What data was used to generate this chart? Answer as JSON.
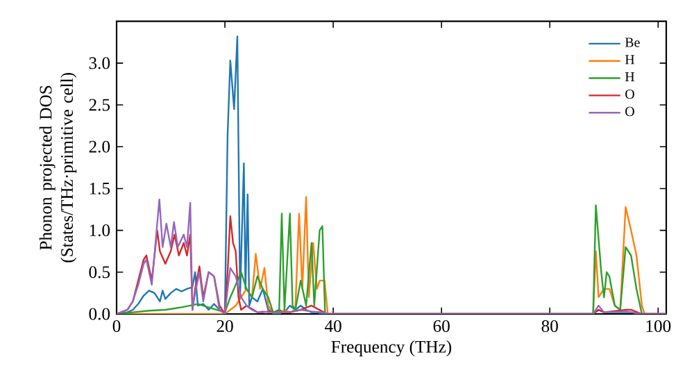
{
  "chart_data": {
    "type": "line",
    "xlabel": "Frequency (THz)",
    "ylabel": "Phonon projected DOS (States/THz·primitive cell)",
    "xlim": [
      0,
      101.5
    ],
    "ylim": [
      0,
      3.5
    ],
    "xticks": [
      0,
      20,
      40,
      60,
      80,
      100
    ],
    "yticks": [
      {
        "value": 0,
        "label": "0.0"
      },
      0.5,
      {
        "value": 1,
        "label": "1.0"
      },
      1.5,
      {
        "value": 2,
        "label": "2.0"
      },
      2.5,
      {
        "value": 3,
        "label": "3.0"
      }
    ],
    "legend": "top right",
    "series": [
      {
        "name": "Be",
        "color": "#1f77b4",
        "x": [
          0,
          2,
          3,
          4,
          5,
          6,
          7,
          8,
          8.5,
          9,
          10,
          11,
          12,
          13,
          14,
          14.5,
          15,
          16,
          17,
          18,
          19,
          20,
          20.5,
          21,
          21.7,
          22.3,
          22.8,
          23.5,
          23.8,
          24.2,
          24.5,
          25,
          26,
          27,
          28,
          29,
          30,
          31,
          32,
          33,
          34,
          35,
          36,
          37,
          38,
          39,
          88,
          89,
          90,
          95,
          97,
          101.5
        ],
        "values": [
          0,
          0.02,
          0.05,
          0.12,
          0.22,
          0.28,
          0.25,
          0.15,
          0.28,
          0.18,
          0.25,
          0.3,
          0.27,
          0.3,
          0.32,
          0.5,
          0.1,
          0.12,
          0.05,
          0.12,
          0.05,
          0.02,
          2.15,
          3.03,
          2.45,
          3.32,
          0.2,
          1.8,
          0.3,
          1.43,
          0.1,
          0.2,
          0.15,
          0.3,
          0.05,
          0.02,
          0.05,
          0.02,
          0.1,
          0.05,
          0.1,
          0.05,
          0.02,
          0.02,
          0,
          0,
          0,
          0.05,
          0.02,
          0.02,
          0,
          0
        ]
      },
      {
        "name": "H",
        "color": "#ff7f0e",
        "x": [
          0,
          20,
          21,
          22,
          23,
          24,
          25,
          25.7,
          26.5,
          27.3,
          28,
          29,
          30,
          31,
          32,
          33,
          33.7,
          34.3,
          35,
          35.5,
          36.3,
          37,
          37.5,
          38.4,
          39,
          88,
          88.5,
          89,
          90,
          91,
          92,
          93,
          94,
          95,
          96,
          97,
          97.5,
          101.5
        ],
        "values": [
          0,
          0,
          0.05,
          0.1,
          0.2,
          0.3,
          0.2,
          0.72,
          0.3,
          0.55,
          0.1,
          0,
          0,
          0.05,
          0.02,
          0.05,
          1.2,
          0.3,
          1.4,
          0.2,
          0.85,
          0.3,
          0.4,
          0.4,
          0,
          0,
          0.75,
          0.2,
          0.3,
          0.3,
          0.1,
          0.05,
          1.28,
          1.0,
          0.7,
          0.1,
          0,
          0
        ]
      },
      {
        "name": "H",
        "color": "#2ca02c",
        "x": [
          0,
          3,
          6,
          9,
          12,
          15,
          18,
          20,
          21,
          22,
          23,
          24,
          25,
          26,
          27,
          28,
          29,
          30,
          30.5,
          31,
          32,
          32.5,
          33,
          34,
          35,
          36,
          36.5,
          37.5,
          38,
          38.5,
          88,
          88.5,
          89.5,
          90,
          90.5,
          91,
          92,
          93,
          94,
          95,
          96,
          97,
          101.5
        ],
        "values": [
          0,
          0.02,
          0.04,
          0.05,
          0.08,
          0.12,
          0.06,
          0.02,
          0.2,
          0.35,
          0.5,
          0.3,
          0.2,
          0.45,
          0.3,
          0.2,
          0,
          0,
          1.2,
          0.05,
          1.2,
          0.1,
          0.05,
          0.4,
          0.1,
          0.85,
          0.1,
          1.0,
          1.05,
          0,
          0,
          1.3,
          0.5,
          0.2,
          0.5,
          0.45,
          0.1,
          0.05,
          0.8,
          0.7,
          0.3,
          0,
          0
        ]
      },
      {
        "name": "O",
        "color": "#d62728",
        "x": [
          0,
          2,
          3,
          4,
          5,
          5.5,
          6.5,
          7.5,
          8,
          9,
          10,
          10.7,
          11.5,
          12.4,
          13,
          13.6,
          14,
          14.5,
          15.3,
          16,
          17,
          18,
          19,
          20,
          20.5,
          21,
          21.5,
          22,
          22.5,
          23,
          24,
          25,
          26,
          27,
          28,
          30,
          32,
          34,
          36,
          38,
          39,
          88,
          89,
          90,
          94,
          95,
          97,
          101.5
        ],
        "values": [
          0,
          0.05,
          0.15,
          0.4,
          0.65,
          0.7,
          0.4,
          1.0,
          0.75,
          0.6,
          0.75,
          0.95,
          0.7,
          0.85,
          0.7,
          0.95,
          0.05,
          0.3,
          0.57,
          0.2,
          0.5,
          0.45,
          0.1,
          0,
          0.5,
          1.17,
          0.85,
          0.75,
          0.2,
          0.05,
          0.1,
          null,
          0.02,
          0.02,
          0.03,
          0.02,
          0.02,
          0.05,
          0.1,
          0.03,
          0,
          0,
          0.05,
          0.02,
          0.05,
          0.05,
          0,
          0
        ]
      },
      {
        "name": "O",
        "color": "#9467bd",
        "x": [
          0,
          2,
          3,
          4,
          5,
          5.5,
          6.5,
          7.9,
          8.5,
          9.2,
          10,
          10.6,
          11.3,
          12.4,
          13,
          13.6,
          14,
          14.5,
          15.3,
          16,
          17,
          18,
          19,
          20,
          20.5,
          21,
          22,
          23,
          24,
          25,
          26,
          27,
          28,
          30,
          32,
          34,
          36,
          38,
          39,
          88,
          89,
          90,
          94,
          95,
          97,
          101.5
        ],
        "values": [
          0,
          0.05,
          0.15,
          0.35,
          0.6,
          0.65,
          0.35,
          1.37,
          0.8,
          1.08,
          0.8,
          1.1,
          0.8,
          0.95,
          0.8,
          1.33,
          0.05,
          0.25,
          0.5,
          0.15,
          0.5,
          0.45,
          0.05,
          0,
          0.3,
          0.55,
          0.45,
          0.2,
          0.1,
          0.05,
          0.02,
          0.03,
          0.02,
          0.02,
          0.02,
          0.05,
          0.03,
          0.02,
          0,
          0,
          0.1,
          0.02,
          0.03,
          0.02,
          0,
          0
        ]
      }
    ]
  }
}
